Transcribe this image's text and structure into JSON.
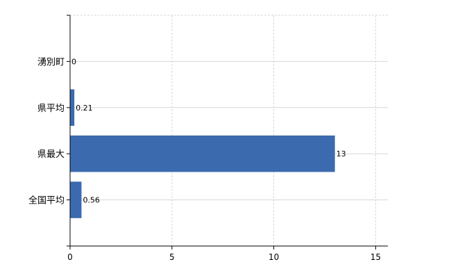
{
  "chart_data": {
    "type": "bar",
    "orientation": "horizontal",
    "categories": [
      "湧別町",
      "県平均",
      "県最大",
      "全国平均"
    ],
    "values": [
      0,
      0.21,
      13,
      0.56
    ],
    "data_labels": [
      "0",
      "0.21",
      "13",
      "0.56"
    ],
    "xlim": [
      0,
      15.6
    ],
    "xticks": [
      0,
      5,
      10,
      15
    ],
    "xtick_labels": [
      "0",
      "5",
      "10",
      "15"
    ],
    "grid": true,
    "bar_color": "#3b6aae",
    "grid_color": "#d3d9d3",
    "title": "",
    "xlabel": "",
    "ylabel": ""
  }
}
